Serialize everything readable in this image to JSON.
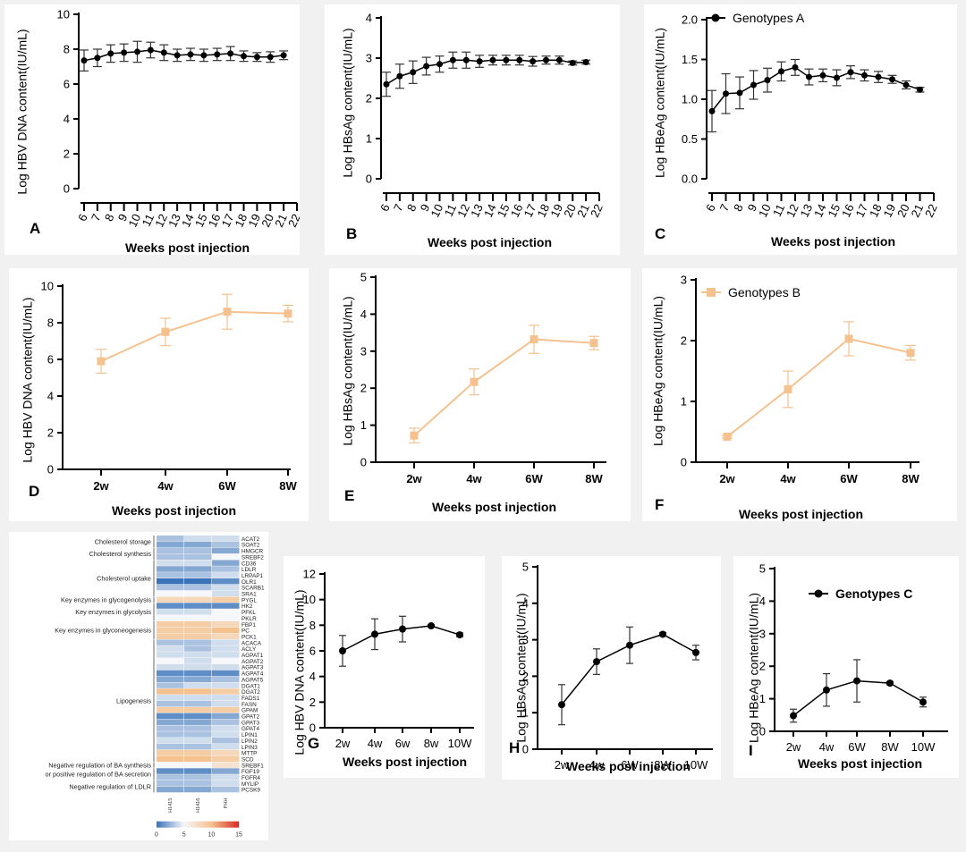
{
  "chart_data": [
    {
      "id": "A",
      "type": "line",
      "panel_label": "A",
      "xlabel": "Weeks post injection",
      "ylabel": "Log HBV DNA content(IU/mL)",
      "ylim": [
        0,
        10
      ],
      "yticks": [
        0,
        2,
        4,
        6,
        8,
        10
      ],
      "xticks": [
        6,
        7,
        8,
        9,
        10,
        11,
        12,
        13,
        14,
        15,
        16,
        17,
        18,
        19,
        20,
        21,
        22
      ],
      "series": [
        {
          "color": "#000000",
          "marker": "circle",
          "x": [
            6,
            7,
            8,
            9,
            10,
            11,
            12,
            13,
            14,
            15,
            16,
            17,
            18,
            19,
            20,
            21
          ],
          "y": [
            7.35,
            7.5,
            7.75,
            7.8,
            7.85,
            7.95,
            7.8,
            7.65,
            7.7,
            7.65,
            7.7,
            7.75,
            7.6,
            7.55,
            7.55,
            7.65
          ],
          "err": [
            0.6,
            0.5,
            0.5,
            0.5,
            0.6,
            0.45,
            0.45,
            0.35,
            0.35,
            0.35,
            0.35,
            0.4,
            0.3,
            0.25,
            0.3,
            0.25
          ]
        }
      ]
    },
    {
      "id": "B",
      "type": "line",
      "panel_label": "B",
      "xlabel": "Weeks post injection",
      "ylabel": "Log HBsAg content(IU/mL)",
      "ylim": [
        0,
        4
      ],
      "yticks": [
        0,
        1,
        2,
        3,
        4
      ],
      "xticks": [
        6,
        7,
        8,
        9,
        10,
        11,
        12,
        13,
        14,
        15,
        16,
        17,
        18,
        19,
        20,
        21,
        22
      ],
      "series": [
        {
          "color": "#000000",
          "marker": "circle",
          "x": [
            6,
            7,
            8,
            9,
            10,
            11,
            12,
            13,
            14,
            15,
            16,
            17,
            18,
            19,
            20,
            21
          ],
          "y": [
            2.35,
            2.55,
            2.65,
            2.8,
            2.85,
            2.95,
            2.95,
            2.92,
            2.95,
            2.95,
            2.95,
            2.92,
            2.95,
            2.95,
            2.88,
            2.9
          ],
          "err": [
            0.3,
            0.3,
            0.28,
            0.22,
            0.2,
            0.2,
            0.2,
            0.15,
            0.12,
            0.12,
            0.12,
            0.12,
            0.1,
            0.1,
            0.05,
            0.05
          ]
        }
      ]
    },
    {
      "id": "C",
      "type": "line",
      "panel_label": "C",
      "xlabel": "Weeks post injection",
      "ylabel": "Log HBeAg content(IU/mL)",
      "ylim": [
        0,
        2
      ],
      "yticks": [
        0.0,
        0.5,
        1.0,
        1.5,
        2.0
      ],
      "ytick_labels": [
        "0.0",
        "0.5",
        "1.0",
        "1.5",
        "2.0"
      ],
      "xticks": [
        6,
        7,
        8,
        9,
        10,
        11,
        12,
        13,
        14,
        15,
        16,
        17,
        18,
        19,
        20,
        21,
        22
      ],
      "legend": "top-center",
      "series": [
        {
          "name": "Genotypes A",
          "color": "#000000",
          "marker": "circle",
          "x": [
            6,
            7,
            8,
            9,
            10,
            11,
            12,
            13,
            14,
            15,
            16,
            17,
            18,
            19,
            20,
            21
          ],
          "y": [
            0.85,
            1.07,
            1.08,
            1.18,
            1.24,
            1.35,
            1.4,
            1.28,
            1.3,
            1.27,
            1.34,
            1.3,
            1.28,
            1.25,
            1.18,
            1.12
          ],
          "err": [
            0.26,
            0.25,
            0.2,
            0.18,
            0.15,
            0.12,
            0.1,
            0.1,
            0.08,
            0.1,
            0.08,
            0.07,
            0.07,
            0.05,
            0.05,
            0.03
          ]
        }
      ]
    },
    {
      "id": "D",
      "type": "line",
      "panel_label": "D",
      "xlabel": "Weeks post injection",
      "ylabel": "Log HBV DNA  content(IU/mL)",
      "ylim": [
        0,
        10
      ],
      "yticks": [
        0,
        2,
        4,
        6,
        8,
        10
      ],
      "categories": [
        "2w",
        "4w",
        "6W",
        "8W"
      ],
      "series": [
        {
          "color": "#f5c28f",
          "marker": "square",
          "y": [
            5.9,
            7.5,
            8.6,
            8.5
          ],
          "err": [
            0.65,
            0.75,
            0.95,
            0.45
          ]
        }
      ]
    },
    {
      "id": "E",
      "type": "line",
      "panel_label": "E",
      "xlabel": "Weeks post injection",
      "ylabel": "Log HBsAg  content(IU/mL)",
      "ylim": [
        0,
        5
      ],
      "yticks": [
        0,
        1,
        2,
        3,
        4,
        5
      ],
      "categories": [
        "2w",
        "4w",
        "6W",
        "8W"
      ],
      "series": [
        {
          "color": "#f5c28f",
          "marker": "square",
          "y": [
            0.72,
            2.17,
            3.32,
            3.22
          ],
          "err": [
            0.2,
            0.35,
            0.38,
            0.18
          ]
        }
      ]
    },
    {
      "id": "F",
      "type": "line",
      "panel_label": "F",
      "xlabel": "Weeks post injection",
      "ylabel": "Log HBeAg  content(IU/mL)",
      "ylim": [
        0,
        3
      ],
      "yticks": [
        0,
        1,
        2,
        3
      ],
      "categories": [
        "2w",
        "4w",
        "6W",
        "8W"
      ],
      "legend": "top-center",
      "series": [
        {
          "name": "Genotypes B",
          "color": "#f5c28f",
          "marker": "square",
          "y": [
            0.42,
            1.2,
            2.03,
            1.8
          ],
          "err": [
            0.02,
            0.3,
            0.28,
            0.12
          ]
        }
      ]
    },
    {
      "id": "G",
      "type": "line",
      "panel_label": "G",
      "xlabel": "Weeks post injection",
      "ylabel": "Log HBV DNA  content(IU/mL)",
      "ylim": [
        0,
        12
      ],
      "yticks": [
        0,
        2,
        4,
        6,
        8,
        10,
        12
      ],
      "categories": [
        "2w",
        "4w",
        "6w",
        "8w",
        "10W"
      ],
      "series": [
        {
          "color": "#000000",
          "marker": "circle",
          "y": [
            6.0,
            7.3,
            7.7,
            7.95,
            7.25
          ],
          "err": [
            1.2,
            1.2,
            1.0,
            0.1,
            0.15
          ]
        }
      ]
    },
    {
      "id": "H",
      "type": "line",
      "panel_label": "H",
      "xlabel": "Weeks post injection",
      "ylabel": "Log HBsAg  content(IU/mL)",
      "ylim": [
        0,
        5
      ],
      "yticks": [
        0,
        1,
        2,
        3,
        4,
        5
      ],
      "categories": [
        "2w",
        "4w",
        "6W",
        "8W",
        "10W"
      ],
      "series": [
        {
          "color": "#000000",
          "marker": "circle",
          "y": [
            1.22,
            2.4,
            2.85,
            3.15,
            2.65
          ],
          "err": [
            0.55,
            0.35,
            0.5,
            0.05,
            0.2
          ]
        }
      ]
    },
    {
      "id": "I",
      "type": "line",
      "panel_label": "I",
      "xlabel": "Weeks post injection",
      "ylabel": "Log HBeAg  content(IU/mL)",
      "ylim": [
        0,
        5
      ],
      "yticks": [
        0,
        1,
        2,
        3,
        4,
        5
      ],
      "categories": [
        "2w",
        "4w",
        "6W",
        "8W",
        "10W"
      ],
      "legend": "top-right",
      "series": [
        {
          "name": "Genotypes C",
          "color": "#000000",
          "marker": "circle",
          "y": [
            0.48,
            1.27,
            1.55,
            1.48,
            0.9
          ],
          "err": [
            0.2,
            0.5,
            0.65,
            0.05,
            0.15
          ]
        }
      ]
    },
    {
      "id": "heatmap",
      "type": "heatmap",
      "columns": [
        "H1415",
        "H1416",
        "PHH"
      ],
      "categories": [
        {
          "label": "Cholesterol storage",
          "genes": [
            "ACAT2",
            "SOAT2"
          ]
        },
        {
          "label": "Cholesterol synthesis",
          "genes": [
            "HMGCR",
            "SREBF2"
          ]
        },
        {
          "label": "Cholesterol uptake",
          "genes": [
            "CD36",
            "LDLR",
            "LRPAP1",
            "OLR1",
            "SCARB1",
            "SRA1"
          ]
        },
        {
          "label": "Key enzymes in glycogenolysis",
          "genes": [
            "PYGL"
          ]
        },
        {
          "label": "Key enzymes in glycolysis",
          "genes": [
            "HK2",
            "PFKL",
            "PKLR"
          ]
        },
        {
          "label": "Key enzymes in glyconeogenesis",
          "genes": [
            "FBP1",
            "PC",
            "PCK1"
          ]
        },
        {
          "label": "Lipogenesis",
          "genes": [
            "ACACA",
            "ACLY",
            "AGPAT1",
            "AGPAT2",
            "AGPAT3",
            "AGPAT4",
            "AGPAT5",
            "DGAT1",
            "DGAT2",
            "FADS1",
            "FASN",
            "GPAM",
            "GPAT2",
            "GPAT3",
            "GPAT4",
            "LPIN1",
            "LPIN2",
            "LPIN3",
            "MTTP",
            "SCD"
          ]
        },
        {
          "label": "Negative regulation of BA synthesis",
          "genes": [
            "SREBF1"
          ]
        },
        {
          "label": "or positive regulation of BA secretion",
          "genes": [
            "FGF19",
            "FGFR4"
          ]
        },
        {
          "label": "Negative regulation of LDLR",
          "genes": [
            "MYLIP",
            "PCSK9"
          ]
        }
      ],
      "values": [
        [
          3,
          4,
          4
        ],
        [
          2,
          2,
          3
        ],
        [
          3,
          3,
          2
        ],
        [
          3,
          3,
          5
        ],
        [
          4,
          4,
          2
        ],
        [
          2,
          2,
          3
        ],
        [
          3,
          3,
          4
        ],
        [
          0,
          0,
          1
        ],
        [
          3,
          3,
          4
        ],
        [
          5,
          5,
          4
        ],
        [
          8,
          8,
          9
        ],
        [
          1,
          1,
          1
        ],
        [
          4,
          4,
          5
        ],
        [
          5,
          5,
          5
        ],
        [
          9,
          9,
          8
        ],
        [
          9,
          9,
          10
        ],
        [
          9,
          9,
          8
        ],
        [
          3,
          3,
          4
        ],
        [
          4,
          3,
          4
        ],
        [
          4,
          4,
          4
        ],
        [
          5,
          4,
          5
        ],
        [
          4,
          4,
          4
        ],
        [
          1,
          1,
          1
        ],
        [
          2,
          2,
          3
        ],
        [
          3,
          4,
          4
        ],
        [
          10,
          10,
          9
        ],
        [
          4,
          4,
          4
        ],
        [
          3,
          3,
          4
        ],
        [
          9,
          9,
          9
        ],
        [
          1,
          1,
          2
        ],
        [
          2,
          2,
          3
        ],
        [
          3,
          3,
          4
        ],
        [
          3,
          3,
          4
        ],
        [
          4,
          4,
          3
        ],
        [
          3,
          3,
          4
        ],
        [
          9,
          9,
          8
        ],
        [
          10,
          10,
          9
        ],
        [
          5,
          5,
          7
        ],
        [
          1,
          1,
          2
        ],
        [
          3,
          3,
          4
        ],
        [
          3,
          3,
          4
        ],
        [
          2,
          2,
          3
        ]
      ],
      "colorbar": {
        "min": 0,
        "max": 15,
        "ticks": [
          0,
          5,
          10,
          15
        ],
        "colors": [
          "#3a73b8",
          "#f5f7fa",
          "#f5c28f",
          "#d92a23"
        ]
      }
    }
  ]
}
